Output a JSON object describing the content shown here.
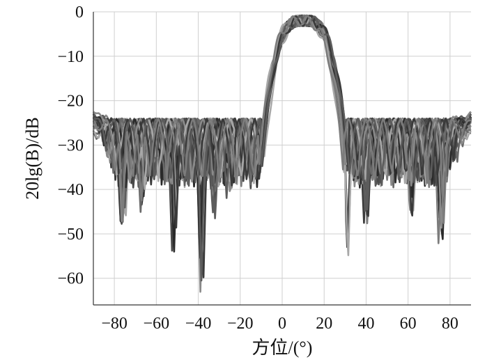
{
  "chart_data": {
    "type": "line",
    "xlabel": "方位/(°)",
    "ylabel": "20lg(B)/dB",
    "xlim": [
      -90,
      90
    ],
    "ylim": [
      -66,
      0
    ],
    "xticks": [
      -80,
      -60,
      -40,
      -20,
      0,
      20,
      40,
      60,
      80
    ],
    "yticks": [
      0,
      -10,
      -20,
      -30,
      -40,
      -50,
      -60
    ],
    "xtick_labels": [
      "−80",
      "−60",
      "−40",
      "−20",
      "0",
      "20",
      "40",
      "60",
      "80"
    ],
    "ytick_labels": [
      "0",
      "−10",
      "−20",
      "−30",
      "−40",
      "−50",
      "−60"
    ],
    "grid": true,
    "legend": "none",
    "main_lobe": {
      "center": 10,
      "peak": 0,
      "null_left": -8,
      "null_right": 30
    },
    "sidelobe_level": -25,
    "series_count": 24,
    "series_colors": [
      "#2a2a2a",
      "#4a4a4a",
      "#6a6a6a",
      "#8a8a8a",
      "#a8a8a8",
      "#3a3a3a",
      "#5c5c5c",
      "#7c7c7c"
    ],
    "deep_nulls": [
      {
        "x": -76,
        "y": -51
      },
      {
        "x": -67,
        "y": -47
      },
      {
        "x": -51,
        "y": -55
      },
      {
        "x": -39,
        "y": -66
      },
      {
        "x": -33,
        "y": -48
      },
      {
        "x": -25,
        "y": -45
      },
      {
        "x": 30,
        "y": -58
      },
      {
        "x": 40,
        "y": -49
      },
      {
        "x": 62,
        "y": -49
      },
      {
        "x": 76,
        "y": -54
      }
    ]
  }
}
